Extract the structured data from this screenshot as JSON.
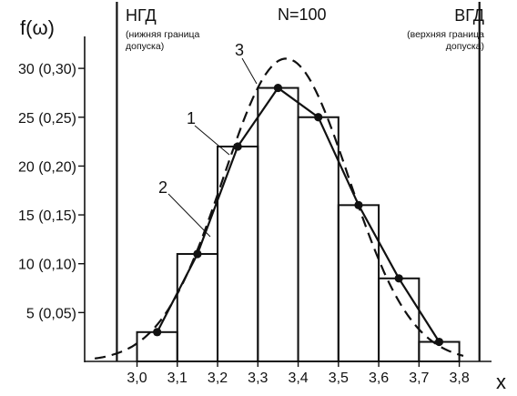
{
  "chart_data": {
    "type": "bar",
    "ylabel": "f(ω)",
    "xlabel": "x",
    "sample_label": "N=100",
    "lower_limit": {
      "x": 2.95,
      "label": "НГД",
      "note_line1": "(нижняя граница",
      "note_line2": "допуска)"
    },
    "upper_limit": {
      "x": 3.85,
      "label": "ВГД",
      "note_line1": "(верхняя граница",
      "note_line2": "допуска)"
    },
    "x_ticks": [
      "3,0",
      "3,1",
      "3,2",
      "3,3",
      "3,4",
      "3,5",
      "3,6",
      "3,7",
      "3,8"
    ],
    "x_tick_values": [
      3.0,
      3.1,
      3.2,
      3.3,
      3.4,
      3.5,
      3.6,
      3.7,
      3.8
    ],
    "y_ticks": [
      "5 (0,05)",
      "10 (0,10)",
      "15 (0,15)",
      "20 (0,20)",
      "25 (0,25)",
      "30 (0,30)"
    ],
    "y_tick_values": [
      5,
      10,
      15,
      20,
      25,
      30
    ],
    "xlim": [
      2.87,
      3.88
    ],
    "ylim": [
      0,
      37
    ],
    "bins": [
      {
        "x0": 3.0,
        "x1": 3.1,
        "value": 3
      },
      {
        "x0": 3.1,
        "x1": 3.2,
        "value": 11
      },
      {
        "x0": 3.2,
        "x1": 3.3,
        "value": 22
      },
      {
        "x0": 3.3,
        "x1": 3.4,
        "value": 28
      },
      {
        "x0": 3.4,
        "x1": 3.5,
        "value": 25
      },
      {
        "x0": 3.5,
        "x1": 3.6,
        "value": 16
      },
      {
        "x0": 3.6,
        "x1": 3.7,
        "value": 8.5
      },
      {
        "x0": 3.7,
        "x1": 3.8,
        "value": 2
      }
    ],
    "series": [
      {
        "label_number": "1",
        "kind": "polygon",
        "x": [
          3.05,
          3.15,
          3.25,
          3.35,
          3.45,
          3.55,
          3.65,
          3.75
        ],
        "y": [
          3,
          11,
          22,
          28,
          25,
          16,
          8.5,
          2
        ]
      },
      {
        "label_number": "2",
        "kind": "histogram"
      },
      {
        "label_number": "3",
        "kind": "normal-curve",
        "mean": 3.37,
        "peak": 31
      }
    ],
    "grid": false,
    "legend": "none"
  }
}
